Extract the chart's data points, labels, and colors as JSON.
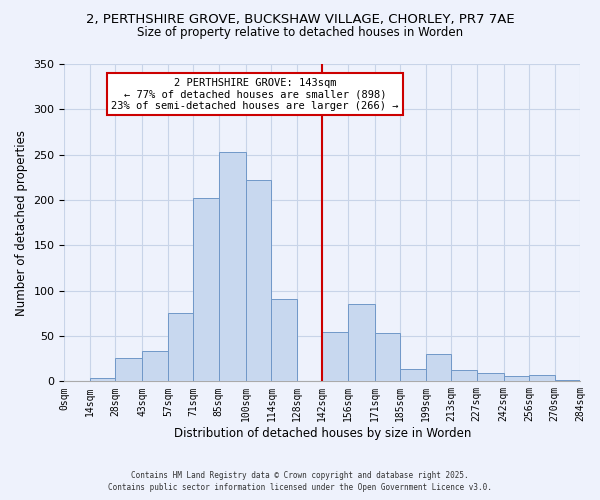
{
  "title": "2, PERTHSHIRE GROVE, BUCKSHAW VILLAGE, CHORLEY, PR7 7AE",
  "subtitle": "Size of property relative to detached houses in Worden",
  "xlabel": "Distribution of detached houses by size in Worden",
  "ylabel": "Number of detached properties",
  "bar_color": "#c8d8ef",
  "bar_edge_color": "#7098c8",
  "vline_x": 142,
  "vline_color": "#cc0000",
  "annotation_title": "2 PERTHSHIRE GROVE: 143sqm",
  "annotation_line1": "← 77% of detached houses are smaller (898)",
  "annotation_line2": "23% of semi-detached houses are larger (266) →",
  "annotation_box_color": "#ffffff",
  "annotation_box_edge": "#cc0000",
  "bins": [
    0,
    14,
    28,
    43,
    57,
    71,
    85,
    100,
    114,
    128,
    142,
    156,
    171,
    185,
    199,
    213,
    227,
    242,
    256,
    270,
    284
  ],
  "bar_heights": [
    0,
    4,
    26,
    34,
    75,
    202,
    253,
    222,
    91,
    0,
    54,
    85,
    53,
    14,
    30,
    12,
    9,
    6,
    7,
    2
  ],
  "ylim": [
    0,
    350
  ],
  "yticks": [
    0,
    50,
    100,
    150,
    200,
    250,
    300,
    350
  ],
  "grid_color": "#c8d4e8",
  "background_color": "#eef2fc",
  "footer_line1": "Contains HM Land Registry data © Crown copyright and database right 2025.",
  "footer_line2": "Contains public sector information licensed under the Open Government Licence v3.0."
}
